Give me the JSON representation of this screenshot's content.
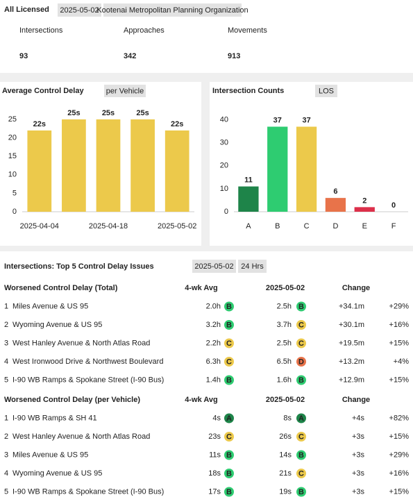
{
  "header": {
    "title": "All Licensed",
    "date": "2025-05-02",
    "org": "Kootenai Metropolitan Planning Organization"
  },
  "stats": [
    {
      "label": "Intersections",
      "value": 93
    },
    {
      "label": "Approaches",
      "value": 342
    },
    {
      "label": "Movements",
      "value": 913
    }
  ],
  "chart_data": [
    {
      "type": "bar",
      "title": "Average Control Delay",
      "badge": "per Vehicle",
      "categories": [
        "2025-04-04",
        null,
        "2025-04-18",
        null,
        "2025-05-02"
      ],
      "values": [
        22,
        25,
        25,
        25,
        22
      ],
      "value_labels": [
        "22s",
        "25s",
        "25s",
        "25s",
        "22s"
      ],
      "color": "#ecc94b",
      "ylim": [
        0,
        28
      ],
      "yticks": [
        0,
        5,
        10,
        15,
        20,
        25
      ],
      "grid": false
    },
    {
      "type": "bar",
      "title": "Intersection Counts",
      "badge": "LOS",
      "categories": [
        "A",
        "B",
        "C",
        "D",
        "E",
        "F"
      ],
      "values": [
        11,
        37,
        37,
        6,
        2,
        0
      ],
      "colors": [
        "#1e8449",
        "#2ecc71",
        "#ecc94b",
        "#e8734a",
        "#dc2f4a",
        "#999999"
      ],
      "ylim": [
        0,
        45
      ],
      "yticks": [
        0,
        10,
        20,
        30,
        40
      ],
      "grid": false
    }
  ],
  "table": {
    "title": "Intersections: Top 5 Control Delay Issues",
    "date": "2025-05-02",
    "period": "24 Hrs",
    "los_colors": {
      "A": "#1e8449",
      "B": "#2ecc71",
      "C": "#ecc94b",
      "D": "#e8734a"
    },
    "sections": [
      {
        "columns": [
          "Worsened Control Delay (Total)",
          "4-wk Avg",
          "2025-05-02",
          "Change"
        ],
        "rows": [
          [
            "1",
            "Miles Avenue & US 95",
            "2.0h",
            "B",
            "2.5h",
            "B",
            "+34.1m",
            "+29%"
          ],
          [
            "2",
            "Wyoming Avenue & US 95",
            "3.2h",
            "B",
            "3.7h",
            "C",
            "+30.1m",
            "+16%"
          ],
          [
            "3",
            "West Hanley Avenue & North Atlas Road",
            "2.2h",
            "C",
            "2.5h",
            "C",
            "+19.5m",
            "+15%"
          ],
          [
            "4",
            "West Ironwood Drive & Northwest Boulevard",
            "6.3h",
            "C",
            "6.5h",
            "D",
            "+13.2m",
            "+4%"
          ],
          [
            "5",
            "I-90 WB Ramps & Spokane Street (I-90 Bus)",
            "1.4h",
            "B",
            "1.6h",
            "B",
            "+12.9m",
            "+15%"
          ]
        ]
      },
      {
        "columns": [
          "Worsened Control Delay (per Vehicle)",
          "4-wk Avg",
          "2025-05-02",
          "Change"
        ],
        "rows": [
          [
            "1",
            "I-90 WB Ramps & SH 41",
            "4s",
            "A",
            "8s",
            "A",
            "+4s",
            "+82%"
          ],
          [
            "2",
            "West Hanley Avenue & North Atlas Road",
            "23s",
            "C",
            "26s",
            "C",
            "+3s",
            "+15%"
          ],
          [
            "3",
            "Miles Avenue & US 95",
            "11s",
            "B",
            "14s",
            "B",
            "+3s",
            "+29%"
          ],
          [
            "4",
            "Wyoming Avenue & US 95",
            "18s",
            "B",
            "21s",
            "C",
            "+3s",
            "+16%"
          ],
          [
            "5",
            "I-90 WB Ramps & Spokane Street (I-90 Bus)",
            "17s",
            "B",
            "19s",
            "B",
            "+3s",
            "+15%"
          ]
        ]
      }
    ]
  }
}
